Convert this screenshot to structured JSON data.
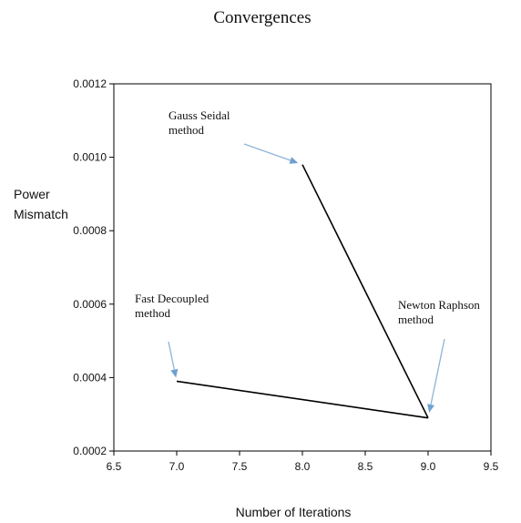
{
  "chart_data": {
    "type": "line",
    "title": "Convergences",
    "xlabel": "Number of Iterations",
    "ylabel": [
      "Power",
      "Mismatch"
    ],
    "xlim": [
      6.5,
      9.5
    ],
    "ylim": [
      0.0002,
      0.0012
    ],
    "xticks": [
      6.5,
      7.0,
      7.5,
      8.0,
      8.5,
      9.0,
      9.5
    ],
    "xtick_labels": [
      "6.5",
      "7.0",
      "7.5",
      "8.0",
      "8.5",
      "9.0",
      "9.5"
    ],
    "yticks": [
      0.0002,
      0.0004,
      0.0006,
      0.0008,
      0.001,
      0.0012
    ],
    "ytick_labels": [
      "0.0002",
      "0.0004",
      "0.0006",
      "0.0008",
      "0.0010",
      "0.0012"
    ],
    "grid": false,
    "series": [
      {
        "x": [
          7.0,
          9.0
        ],
        "y": [
          0.00039,
          0.00029
        ]
      },
      {
        "x": [
          8.0,
          9.0
        ],
        "y": [
          0.00098,
          0.00029
        ]
      }
    ],
    "annotations": [
      {
        "lines": [
          "Gauss Seidal",
          "method"
        ],
        "points_to": [
          8.0,
          0.00098
        ]
      },
      {
        "lines": [
          "Fast Decoupled",
          "method"
        ],
        "points_to": [
          7.0,
          0.00039
        ]
      },
      {
        "lines": [
          "Newton Raphson",
          "method"
        ],
        "points_to": [
          9.0,
          0.00029
        ]
      }
    ],
    "colors": {
      "line": "#000000",
      "arrow": "#8db4d8"
    }
  }
}
